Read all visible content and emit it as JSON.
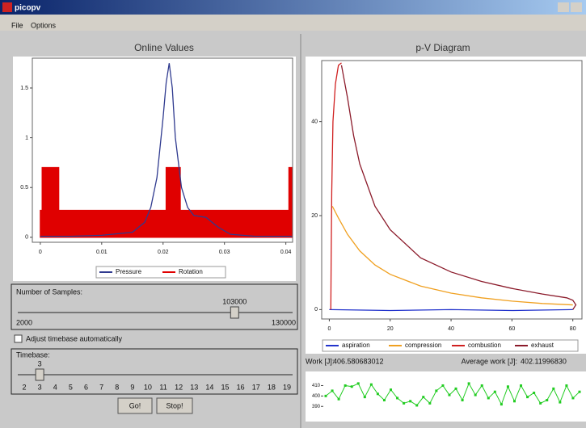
{
  "window": {
    "title": "picopv",
    "menu": [
      "File",
      "Options"
    ]
  },
  "online": {
    "title": "Online Values",
    "chart_data": {
      "type": "line",
      "xlim": [
        -0.0013,
        0.0411
      ],
      "ylim": [
        -0.05,
        1.8
      ],
      "xticks": [
        0,
        0.01,
        0.02,
        0.03,
        0.04
      ],
      "yticks": [
        0,
        0.5,
        1,
        1.5
      ],
      "series": [
        {
          "name": "Pressure",
          "color": "#2f3a8f",
          "style": "line",
          "x": [
            0,
            0.005,
            0.01,
            0.015,
            0.017,
            0.018,
            0.019,
            0.02,
            0.0205,
            0.021,
            0.0215,
            0.022,
            0.023,
            0.024,
            0.025,
            0.027,
            0.029,
            0.031,
            0.035,
            0.041
          ],
          "values": [
            0.01,
            0.01,
            0.02,
            0.05,
            0.15,
            0.3,
            0.6,
            1.2,
            1.55,
            1.75,
            1.5,
            1.0,
            0.5,
            0.3,
            0.22,
            0.2,
            0.1,
            0.03,
            0.01,
            0.01
          ]
        },
        {
          "name": "Rotation",
          "color": "#e00000",
          "style": "area",
          "x": [
            0,
            0.0003,
            0.0003,
            0.003,
            0.003,
            0.0205,
            0.0205,
            0.0228,
            0.0228,
            0.0405,
            0.0405,
            0.041
          ],
          "values": [
            0.27,
            0.27,
            0.7,
            0.7,
            0.27,
            0.27,
            0.7,
            0.7,
            0.27,
            0.27,
            0.7,
            0.7
          ]
        }
      ]
    }
  },
  "samples": {
    "label": "Number of Samples:",
    "value": 103000,
    "min": 2000,
    "max": 130000
  },
  "autotime": {
    "label": "Adjust timebase automatically"
  },
  "timebase": {
    "label": "Timebase:",
    "value": 3,
    "ticks": [
      2,
      3,
      4,
      5,
      6,
      7,
      8,
      9,
      10,
      11,
      12,
      13,
      14,
      15,
      16,
      17,
      18,
      19
    ]
  },
  "buttons": [
    "Go!",
    "Stop!"
  ],
  "pv": {
    "title": "p-V Diagram",
    "chart_data": {
      "type": "line",
      "xlim": [
        -2.5,
        83
      ],
      "ylim": [
        -2,
        53
      ],
      "xticks": [
        0,
        20,
        40,
        60,
        80
      ],
      "yticks": [
        0,
        20,
        40
      ],
      "series": [
        {
          "name": "aspiration",
          "color": "#2233cc",
          "style": "line",
          "x": [
            80,
            60,
            40,
            20,
            0
          ],
          "values": [
            0,
            -0.2,
            0,
            -0.2,
            0
          ]
        },
        {
          "name": "compression",
          "color": "#f0a020",
          "style": "line",
          "x": [
            80,
            70,
            60,
            50,
            40,
            30,
            20,
            15,
            10,
            6,
            3,
            1
          ],
          "values": [
            1,
            1.3,
            1.8,
            2.5,
            3.5,
            5,
            7.5,
            9.5,
            12.5,
            16,
            19.5,
            22
          ]
        },
        {
          "name": "combustion",
          "color": "#d02020",
          "style": "line",
          "x": [
            0.5,
            0.6,
            0.8,
            1.2,
            2,
            3,
            4
          ],
          "values": [
            0,
            10,
            25,
            40,
            48,
            52,
            52.5
          ]
        },
        {
          "name": "exhaust",
          "color": "#8b1a2a",
          "style": "line",
          "x": [
            4,
            6,
            8,
            10,
            15,
            20,
            30,
            40,
            50,
            60,
            70,
            78,
            80,
            81,
            80
          ],
          "values": [
            52,
            45,
            37,
            31,
            22,
            17,
            11,
            8,
            6,
            4.5,
            3.3,
            2.5,
            2,
            1,
            0
          ]
        }
      ]
    }
  },
  "work": {
    "label": "Work [J]:",
    "value": "406.580683012",
    "avg_label": "Average work [J]:",
    "avg_value": "402.11996830"
  },
  "work_chart": {
    "chart_data": {
      "type": "line",
      "color": "#22cc22",
      "ylim": [
        377,
        422
      ],
      "yticks": [
        410,
        400,
        390
      ],
      "values": [
        400,
        405,
        397,
        410,
        409,
        412,
        399,
        411,
        402,
        396,
        406,
        398,
        393,
        395,
        391,
        399,
        393,
        405,
        410,
        401,
        407,
        396,
        412,
        401,
        410,
        398,
        404,
        392,
        409,
        395,
        410,
        399,
        403,
        393,
        396,
        407,
        394,
        410,
        398,
        404
      ]
    }
  }
}
